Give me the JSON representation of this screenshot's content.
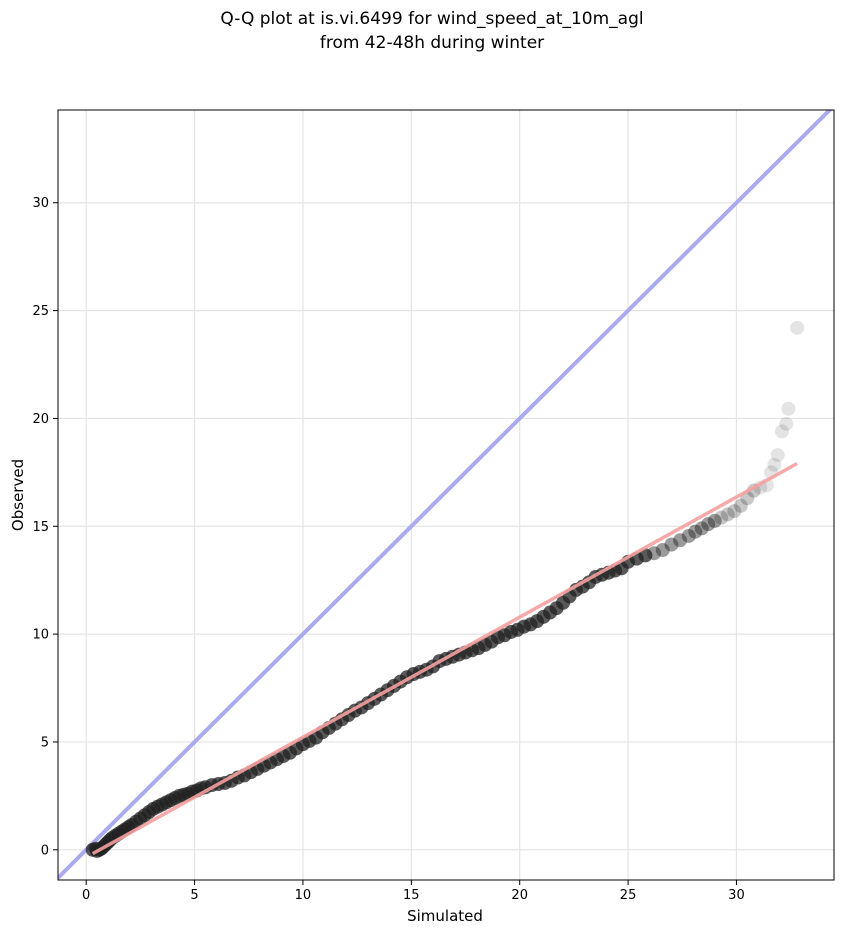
{
  "chart_data": {
    "type": "scatter",
    "title_line1": "Q-Q plot at is.vi.6499 for wind_speed_at_10m_agl",
    "title_line2": "from 42-48h during winter",
    "xlabel": "Simulated",
    "ylabel": "Observed",
    "xlim": [
      -1.3,
      34.5
    ],
    "ylim": [
      -1.4,
      34.3
    ],
    "xticks": [
      0,
      5,
      10,
      15,
      20,
      25,
      30
    ],
    "yticks": [
      0,
      5,
      10,
      15,
      20,
      25,
      30
    ],
    "grid": true,
    "reference_line": {
      "slope": 1,
      "intercept": 0,
      "color": "#aaaaee"
    },
    "fit_line": {
      "x_start": 0.3,
      "x_end": 32.8,
      "color": "#f4a0a0"
    },
    "point_color": "#222222",
    "points": [
      [
        0.3,
        0.0
      ],
      [
        0.45,
        0.05
      ],
      [
        0.5,
        -0.05
      ],
      [
        0.6,
        0.0
      ],
      [
        0.7,
        0.05
      ],
      [
        0.8,
        0.15
      ],
      [
        0.9,
        0.25
      ],
      [
        1.0,
        0.35
      ],
      [
        1.1,
        0.45
      ],
      [
        1.2,
        0.55
      ],
      [
        1.35,
        0.65
      ],
      [
        1.5,
        0.75
      ],
      [
        1.65,
        0.85
      ],
      [
        1.8,
        0.95
      ],
      [
        1.95,
        1.05
      ],
      [
        2.1,
        1.15
      ],
      [
        2.3,
        1.3
      ],
      [
        2.5,
        1.45
      ],
      [
        2.7,
        1.6
      ],
      [
        2.9,
        1.75
      ],
      [
        3.1,
        1.9
      ],
      [
        3.3,
        2.0
      ],
      [
        3.5,
        2.1
      ],
      [
        3.7,
        2.2
      ],
      [
        3.9,
        2.3
      ],
      [
        4.1,
        2.4
      ],
      [
        4.3,
        2.5
      ],
      [
        4.5,
        2.55
      ],
      [
        4.7,
        2.6
      ],
      [
        4.9,
        2.7
      ],
      [
        5.1,
        2.75
      ],
      [
        5.3,
        2.85
      ],
      [
        5.5,
        2.9
      ],
      [
        5.8,
        3.0
      ],
      [
        6.1,
        3.05
      ],
      [
        6.4,
        3.1
      ],
      [
        6.7,
        3.2
      ],
      [
        7.0,
        3.35
      ],
      [
        7.3,
        3.45
      ],
      [
        7.6,
        3.6
      ],
      [
        7.9,
        3.75
      ],
      [
        8.2,
        3.9
      ],
      [
        8.5,
        4.05
      ],
      [
        8.8,
        4.2
      ],
      [
        9.1,
        4.35
      ],
      [
        9.4,
        4.5
      ],
      [
        9.7,
        4.7
      ],
      [
        10.0,
        4.9
      ],
      [
        10.3,
        5.05
      ],
      [
        10.6,
        5.2
      ],
      [
        10.9,
        5.45
      ],
      [
        11.2,
        5.65
      ],
      [
        11.5,
        5.85
      ],
      [
        11.8,
        6.05
      ],
      [
        12.1,
        6.25
      ],
      [
        12.4,
        6.45
      ],
      [
        12.7,
        6.6
      ],
      [
        13.0,
        6.8
      ],
      [
        13.3,
        7.0
      ],
      [
        13.6,
        7.2
      ],
      [
        13.9,
        7.4
      ],
      [
        14.2,
        7.6
      ],
      [
        14.5,
        7.8
      ],
      [
        14.8,
        8.0
      ],
      [
        15.1,
        8.15
      ],
      [
        15.4,
        8.25
      ],
      [
        15.7,
        8.35
      ],
      [
        16.0,
        8.5
      ],
      [
        16.3,
        8.75
      ],
      [
        16.6,
        8.85
      ],
      [
        16.9,
        8.95
      ],
      [
        17.2,
        9.05
      ],
      [
        17.5,
        9.15
      ],
      [
        17.8,
        9.25
      ],
      [
        18.1,
        9.35
      ],
      [
        18.4,
        9.5
      ],
      [
        18.7,
        9.65
      ],
      [
        19.0,
        9.85
      ],
      [
        19.3,
        9.95
      ],
      [
        19.6,
        10.1
      ],
      [
        19.9,
        10.2
      ],
      [
        20.2,
        10.35
      ],
      [
        20.5,
        10.45
      ],
      [
        20.8,
        10.6
      ],
      [
        21.1,
        10.8
      ],
      [
        21.4,
        11.0
      ],
      [
        21.7,
        11.2
      ],
      [
        22.0,
        11.45
      ],
      [
        22.3,
        11.75
      ],
      [
        22.6,
        12.05
      ],
      [
        22.9,
        12.2
      ],
      [
        23.2,
        12.4
      ],
      [
        23.5,
        12.65
      ],
      [
        23.8,
        12.75
      ],
      [
        24.1,
        12.85
      ],
      [
        24.4,
        12.95
      ],
      [
        24.7,
        13.05
      ],
      [
        25.0,
        13.35
      ],
      [
        25.4,
        13.5
      ],
      [
        25.8,
        13.65
      ],
      [
        26.2,
        13.75
      ],
      [
        26.6,
        13.9
      ],
      [
        27.0,
        14.15
      ],
      [
        27.4,
        14.35
      ],
      [
        27.8,
        14.55
      ],
      [
        28.1,
        14.75
      ],
      [
        28.4,
        14.9
      ],
      [
        28.7,
        15.1
      ],
      [
        29.0,
        15.25
      ],
      [
        29.3,
        15.4
      ],
      [
        29.6,
        15.55
      ],
      [
        29.9,
        15.7
      ],
      [
        30.2,
        15.95
      ],
      [
        30.5,
        16.3
      ],
      [
        30.8,
        16.65
      ],
      [
        31.1,
        16.8
      ],
      [
        31.4,
        16.9
      ],
      [
        31.6,
        17.5
      ],
      [
        31.75,
        17.85
      ],
      [
        31.9,
        18.3
      ],
      [
        32.1,
        19.4
      ],
      [
        32.3,
        19.75
      ],
      [
        32.4,
        20.45
      ],
      [
        32.8,
        24.2
      ]
    ]
  }
}
